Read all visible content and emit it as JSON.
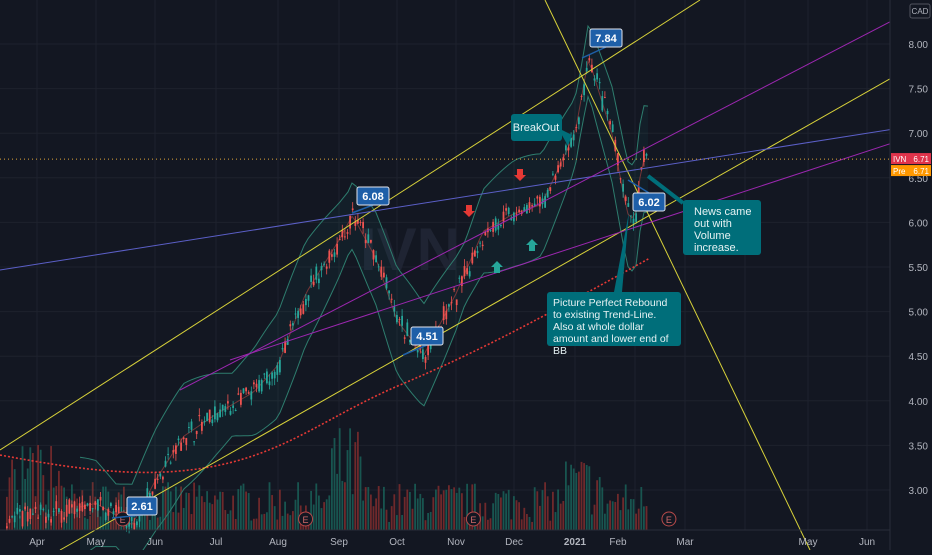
{
  "currency": "CAD",
  "watermark": "IVN",
  "price_axis": {
    "ticks": [
      "8.00",
      "7.50",
      "7.00",
      "6.50",
      "6.00",
      "5.50",
      "5.00",
      "4.50",
      "4.00",
      "3.50",
      "3.00"
    ],
    "tags": [
      {
        "label": "IVN",
        "value": "6.71",
        "color": "#e0334b"
      },
      {
        "label": "Pre",
        "value": "6.71",
        "color": "#ff9800"
      }
    ]
  },
  "time_axis": {
    "labels": [
      "Apr",
      "May",
      "Jun",
      "Jul",
      "Aug",
      "Sep",
      "Oct",
      "Nov",
      "Dec",
      "2021",
      "Feb",
      "Mar",
      "May",
      "Jun"
    ]
  },
  "earnings_marker": "E",
  "callouts": {
    "price_labels": [
      "7.84",
      "6.08",
      "4.51",
      "2.61",
      "6.02"
    ],
    "breakout": "BreakOut",
    "news": "News came out with Volume increase.",
    "rebound": "Picture Perfect Rebound to existing Trend-Line. Also at whole dollar amount and lower end of BB"
  },
  "colors": {
    "background": "#131722",
    "up_candle": "#26a69a",
    "down_candle": "#ef5350",
    "trend_yellow": "#d8d23a",
    "trend_purple": "#9c27b0",
    "trend_blue": "#5b5fc7",
    "callout_blue": "#1e5fa8",
    "callout_teal": "#006e7a",
    "ma_red": "#e53935",
    "arrow_red": "#e53935",
    "arrow_teal": "#26a69a"
  },
  "chart_data": {
    "type": "candlestick",
    "symbol": "IVN",
    "currency": "CAD",
    "ylim": [
      2.65,
      8.25
    ],
    "x": [
      "2020-04",
      "2020-05",
      "2020-06",
      "2020-07",
      "2020-08",
      "2020-09",
      "2020-10",
      "2020-11",
      "2020-12",
      "2021-01",
      "2021-02"
    ],
    "close_path": [
      {
        "date": "2020-04-01",
        "price": 2.7
      },
      {
        "date": "2020-05-01",
        "price": 2.85
      },
      {
        "date": "2020-05-20",
        "price": 2.61
      },
      {
        "date": "2020-06-01",
        "price": 3.1
      },
      {
        "date": "2020-06-15",
        "price": 3.6
      },
      {
        "date": "2020-07-01",
        "price": 3.85
      },
      {
        "date": "2020-07-20",
        "price": 4.1
      },
      {
        "date": "2020-08-01",
        "price": 4.4
      },
      {
        "date": "2020-08-15",
        "price": 5.2
      },
      {
        "date": "2020-09-01",
        "price": 5.8
      },
      {
        "date": "2020-09-08",
        "price": 6.08
      },
      {
        "date": "2020-09-20",
        "price": 5.6
      },
      {
        "date": "2020-10-01",
        "price": 4.9
      },
      {
        "date": "2020-10-15",
        "price": 4.51
      },
      {
        "date": "2020-11-01",
        "price": 5.2
      },
      {
        "date": "2020-11-15",
        "price": 5.9
      },
      {
        "date": "2020-12-01",
        "price": 6.1
      },
      {
        "date": "2020-12-15",
        "price": 6.2
      },
      {
        "date": "2021-01-01",
        "price": 7.0
      },
      {
        "date": "2021-01-08",
        "price": 7.84
      },
      {
        "date": "2021-01-20",
        "price": 7.0
      },
      {
        "date": "2021-01-28",
        "price": 6.1
      },
      {
        "date": "2021-02-01",
        "price": 6.02
      },
      {
        "date": "2021-02-05",
        "price": 6.71
      }
    ],
    "last_price": 6.71,
    "annotated_prices": [
      7.84,
      6.08,
      4.51,
      2.61,
      6.02
    ],
    "earnings_dates": [
      "2020-05-15",
      "2020-08-15",
      "2020-11-10",
      "2021-02-20"
    ],
    "indicators": [
      "Bollinger Bands",
      "200-day moving average",
      "Volume"
    ]
  }
}
